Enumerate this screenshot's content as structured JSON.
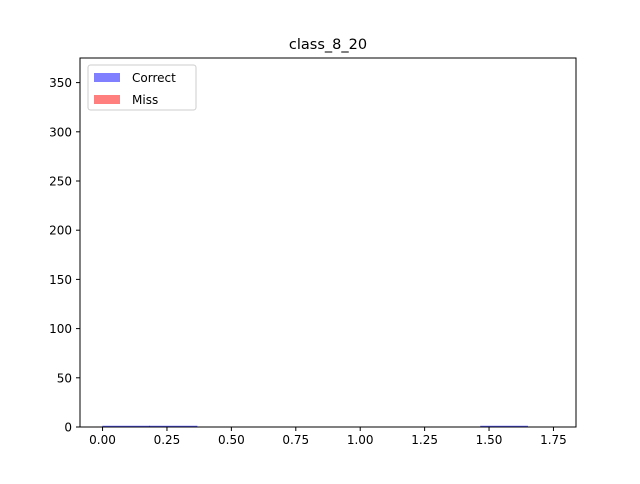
{
  "chart_data": {
    "type": "histogram",
    "title": "class_8_20",
    "xlabel": "",
    "ylabel": "",
    "xlim": [
      -0.0875,
      1.8375
    ],
    "ylim": [
      0,
      375
    ],
    "xticks": [
      "0.00",
      "0.25",
      "0.50",
      "0.75",
      "1.00",
      "1.25",
      "1.50",
      "1.75"
    ],
    "xtick_values": [
      0,
      0.25,
      0.5,
      0.75,
      1.0,
      1.25,
      1.5,
      1.75
    ],
    "yticks": [
      "0",
      "50",
      "100",
      "150",
      "200",
      "250",
      "300",
      "350"
    ],
    "ytick_values": [
      0,
      50,
      100,
      150,
      200,
      250,
      300,
      350
    ],
    "grid": false,
    "legend_position": "upper left",
    "series": [
      {
        "name": "Correct",
        "color": "#0000ff",
        "alpha": 0.5,
        "bins": [
          {
            "x0": 0.0,
            "x1": 0.183,
            "value": 1
          },
          {
            "x0": 0.183,
            "x1": 0.367,
            "value": 1
          },
          {
            "x0": 1.467,
            "x1": 1.65,
            "value": 1
          }
        ]
      },
      {
        "name": "Miss",
        "color": "#ff0000",
        "alpha": 0.5,
        "bins": []
      }
    ]
  }
}
